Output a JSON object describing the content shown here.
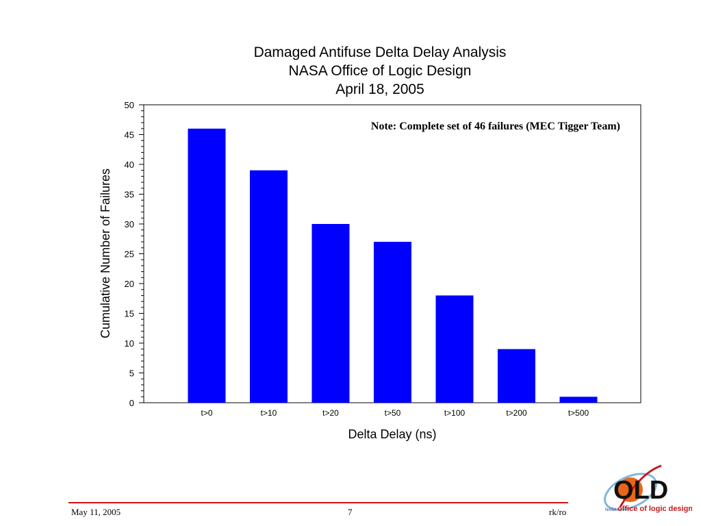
{
  "chart_data": {
    "type": "bar",
    "title": "Damaged Antifuse Delta Delay Analysis",
    "subtitle_lines": [
      "NASA Office of Logic Design",
      "April 18, 2005"
    ],
    "xlabel": "Delta Delay (ns)",
    "ylabel": "Cumulative Number of Failures",
    "categories": [
      "t>0",
      "t>10",
      "t>20",
      "t>50",
      "t>100",
      "t>200",
      "t>500"
    ],
    "values": [
      46,
      39,
      30,
      27,
      18,
      9,
      1
    ],
    "ylim": [
      0,
      50
    ],
    "yticks": [
      0,
      5,
      10,
      15,
      20,
      25,
      30,
      35,
      40,
      45,
      50
    ],
    "grid": false,
    "annotation": "Note: Complete set of 46 failures (MEC Tigger Team)",
    "bar_color": "#0000ff"
  },
  "footer": {
    "date": "May 11, 2005",
    "page": "7",
    "author": "rk/ro",
    "rule_color": "#d01010"
  },
  "logo": {
    "text_main": "OLD",
    "text_sub": "office of logic design",
    "text_small": "NASA"
  }
}
